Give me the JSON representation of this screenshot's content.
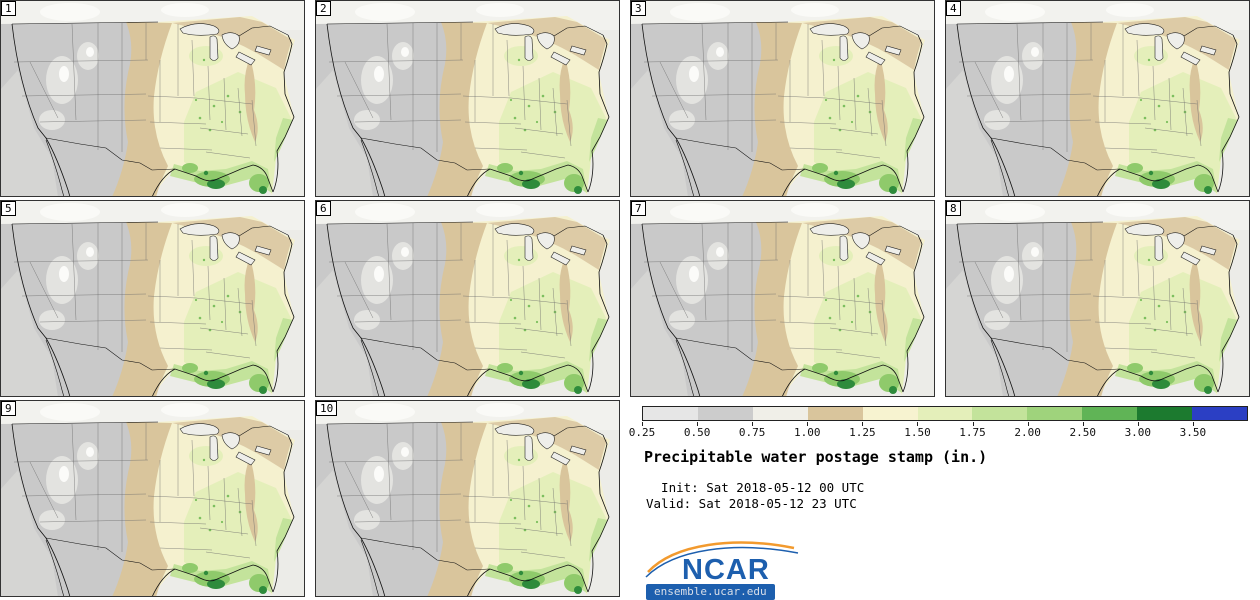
{
  "figure": {
    "title": "Precipitable water postage stamp (in.)",
    "init_line": "  Init: Sat 2018-05-12 00 UTC",
    "valid_line": "Valid: Sat 2018-05-12 23 UTC"
  },
  "panels": [
    {
      "label": "1"
    },
    {
      "label": "2"
    },
    {
      "label": "3"
    },
    {
      "label": "4"
    },
    {
      "label": "5"
    },
    {
      "label": "6"
    },
    {
      "label": "7"
    },
    {
      "label": "8"
    },
    {
      "label": "9"
    },
    {
      "label": "10"
    }
  ],
  "colorbar": {
    "units": "in.",
    "tick_labels": [
      "0.25",
      "0.50",
      "0.75",
      "1.00",
      "1.25",
      "1.50",
      "1.75",
      "2.00",
      "2.50",
      "3.00",
      "3.50"
    ],
    "segment_colors": [
      "#e6e6e6",
      "#cccccc",
      "#f0efe8",
      "#d9c59c",
      "#f7f3d0",
      "#e4efba",
      "#c3e39b",
      "#9fd37c",
      "#60b456",
      "#1c7a2f",
      "#2b3fc4"
    ]
  },
  "branding": {
    "logo_text": "NCAR",
    "logo_color": "#1d5fae",
    "swoosh_color": "#f29a2e",
    "site": "ensemble.ucar.edu"
  }
}
